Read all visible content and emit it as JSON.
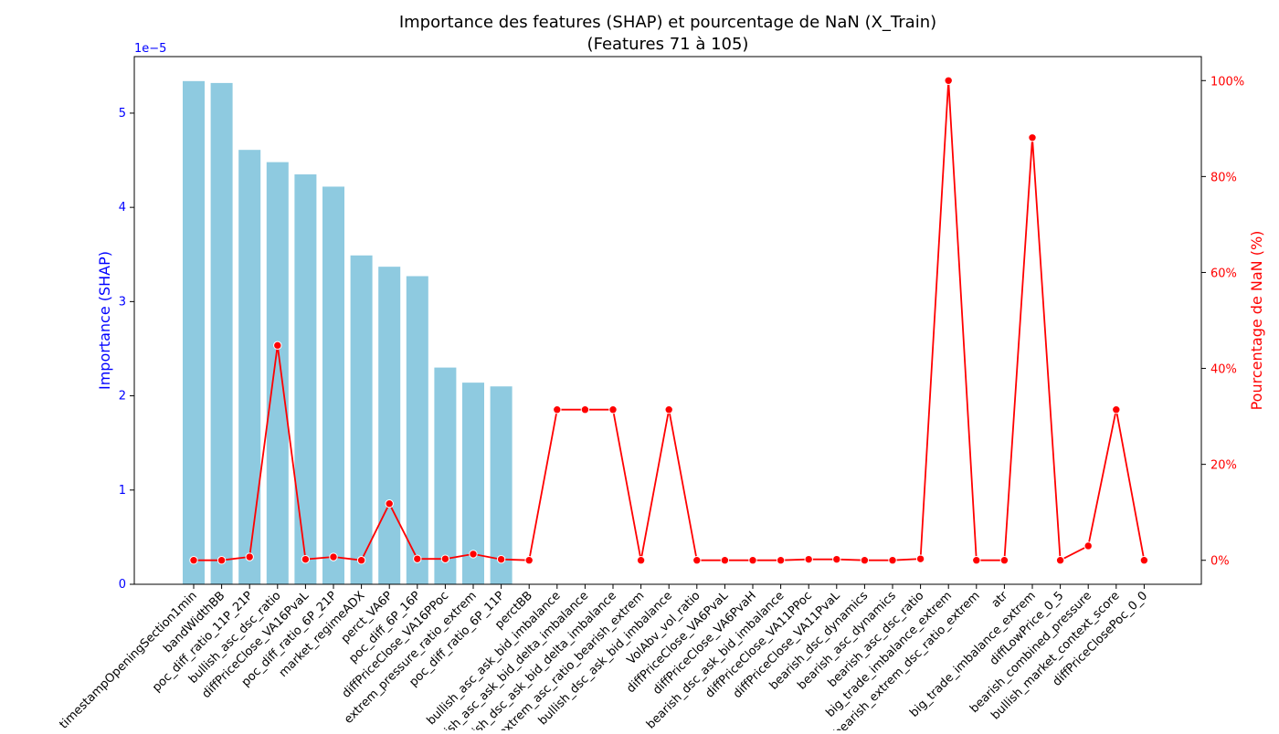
{
  "chart_data": {
    "type": "bar",
    "title_line1": "Importance des features (SHAP) et pourcentage de NaN (X_Train)",
    "title_line2": "(Features 71 à 105)",
    "ylabel_left": "Importance (SHAP)",
    "ylabel_right": "Pourcentage de NaN (%)",
    "left_axis_offset_label": "1e−5",
    "left_ticks": [
      0,
      1,
      2,
      3,
      4,
      5
    ],
    "left_tick_labels": [
      "0",
      "1",
      "2",
      "3",
      "4",
      "5"
    ],
    "ylim_left": [
      0,
      5.6
    ],
    "right_ticks": [
      0,
      20,
      40,
      60,
      80,
      100
    ],
    "right_tick_labels": [
      "0%",
      "20%",
      "40%",
      "60%",
      "80%",
      "100%"
    ],
    "ylim_right": [
      -5,
      105
    ],
    "categories": [
      "timestampOpeningSection1min",
      "bandWidthBB",
      "poc_diff_ratio_11P_21P",
      "bullish_asc_dsc_ratio",
      "diffPriceClose_VA16PvaL",
      "poc_diff_ratio_6P_21P",
      "market_regimeADX",
      "perct_VA6P",
      "poc_diff_6P_16P",
      "diffPriceClose_VA16PPoc",
      "extrem_pressure_ratio_extrem",
      "poc_diff_ratio_6P_11P",
      "perctBB",
      "bullish_asc_ask_bid_imbalance",
      "bearish_asc_ask_bid_delta_imbalance",
      "bearish_dsc_ask_bid_delta_imbalance",
      "extrem_asc_ratio_bearish_extrem",
      "bullish_dsc_ask_bid_imbalance",
      "VolAbv_vol_ratio",
      "diffPriceClose_VA6PvaL",
      "diffPriceClose_VA6PvaH",
      "bearish_dsc_ask_bid_imbalance",
      "diffPriceClose_VA11PPoc",
      "diffPriceClose_VA11PvaL",
      "bearish_dsc_dynamics",
      "bearish_asc_dynamics",
      "bearish_asc_dsc_ratio",
      "big_trade_imbalance_extrem",
      "bearish_extrem_dsc_ratio_extrem",
      "atr",
      "big_trade_imbalance_extrem",
      "diffLowPrice_0_5",
      "bearish_combined_pressure",
      "bullish_market_context_score",
      "diffPriceClosePoc_0_0"
    ],
    "series": [
      {
        "name": "",
        "kind": "bar",
        "color": "#8ecae0",
        "values": [
          5.34,
          5.32,
          4.61,
          4.48,
          4.35,
          4.22,
          3.49,
          3.37,
          3.27,
          2.3,
          2.14,
          2.1,
          0,
          0,
          0,
          0,
          0,
          0,
          0,
          0,
          0,
          0,
          0,
          0,
          0,
          0,
          0,
          0,
          0,
          0,
          0,
          0,
          0,
          0,
          0
        ]
      },
      {
        "name": "",
        "kind": "line",
        "color": "#ff0000",
        "values": [
          0,
          0,
          0.7,
          44.8,
          0.2,
          0.7,
          0,
          11.8,
          0.3,
          0.3,
          1.3,
          0.2,
          0,
          31.4,
          31.4,
          31.4,
          0,
          31.4,
          0,
          0,
          0,
          0,
          0.2,
          0.2,
          0,
          0,
          0.3,
          100,
          0,
          0,
          88.1,
          0,
          3.0,
          31.4,
          0
        ]
      }
    ],
    "colors": {
      "left_axis": "#0000ff",
      "right_axis": "#ff0000",
      "axes": "#000000"
    }
  }
}
